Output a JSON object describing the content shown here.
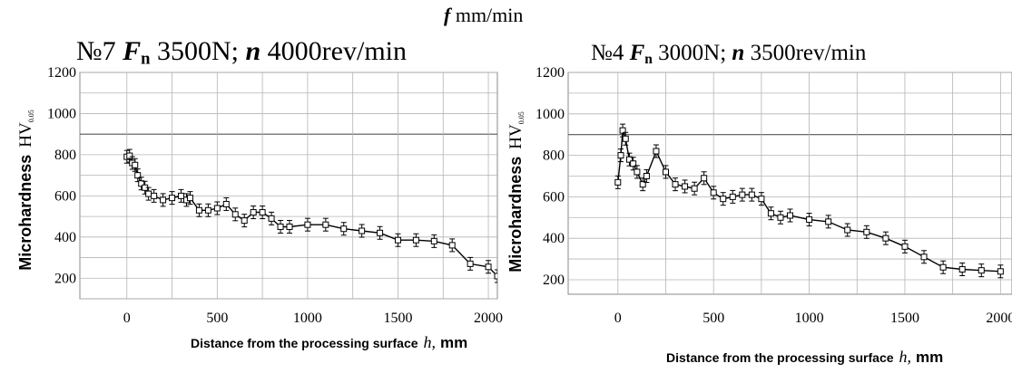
{
  "header": {
    "f_symbol": "f",
    "f_unit": "mm/min"
  },
  "chart_data": [
    {
      "type": "line",
      "title_parts": {
        "number": "№7",
        "force_symbol": "F",
        "force_sub": "n",
        "force_value": "3500N;",
        "speed_symbol": "n",
        "speed_value": "4000rev/min"
      },
      "ylabel_main": "Microhardness",
      "ylabel_hv": "HV",
      "ylabel_hv_sub": "0.05",
      "xlabel_main": "Distance from the processing surface",
      "xlabel_var": "h,",
      "xlabel_unit": "mm",
      "x_tick_labels": [
        "0",
        "500",
        "1000",
        "1500",
        "2000"
      ],
      "y_tick_labels": [
        "200",
        "400",
        "600",
        "800",
        "1000",
        "1200"
      ],
      "xlim": [
        -260,
        2050
      ],
      "ylim": [
        100,
        1200
      ],
      "grid": true,
      "x": [
        0,
        15,
        30,
        45,
        60,
        80,
        100,
        120,
        150,
        200,
        250,
        300,
        330,
        350,
        400,
        450,
        500,
        550,
        600,
        650,
        700,
        750,
        800,
        850,
        900,
        1000,
        1100,
        1200,
        1300,
        1400,
        1500,
        1600,
        1700,
        1800,
        1900,
        2000,
        2050
      ],
      "y": [
        790,
        795,
        760,
        750,
        700,
        660,
        640,
        610,
        600,
        580,
        590,
        600,
        580,
        590,
        530,
        530,
        540,
        560,
        510,
        480,
        520,
        520,
        490,
        450,
        450,
        460,
        460,
        440,
        430,
        420,
        385,
        385,
        380,
        360,
        270,
        255,
        210
      ]
    },
    {
      "type": "line",
      "title_parts": {
        "number": "№4",
        "force_symbol": "F",
        "force_sub": "n",
        "force_value": "3000N;",
        "speed_symbol": "n",
        "speed_value": "3500rev/min"
      },
      "ylabel_main": "Microhardness",
      "ylabel_hv": "HV",
      "ylabel_hv_sub": "0.05",
      "xlabel_main": "Distance from the processing surface",
      "xlabel_var": "h,",
      "xlabel_unit": "mm",
      "x_tick_labels": [
        "0",
        "500",
        "1000",
        "1500",
        "2000"
      ],
      "y_tick_labels": [
        "200",
        "400",
        "600",
        "800",
        "1000",
        "1200"
      ],
      "xlim": [
        -260,
        2060
      ],
      "ylim": [
        130,
        1200
      ],
      "grid": true,
      "x": [
        0,
        15,
        25,
        40,
        60,
        80,
        100,
        130,
        150,
        200,
        250,
        300,
        350,
        400,
        450,
        500,
        550,
        600,
        650,
        700,
        750,
        800,
        850,
        900,
        1000,
        1100,
        1200,
        1300,
        1400,
        1500,
        1600,
        1700,
        1800,
        1900,
        2000
      ],
      "y": [
        670,
        800,
        920,
        880,
        780,
        760,
        720,
        660,
        700,
        820,
        720,
        660,
        650,
        640,
        690,
        620,
        590,
        600,
        610,
        610,
        590,
        520,
        500,
        510,
        490,
        480,
        440,
        430,
        400,
        360,
        310,
        260,
        250,
        245,
        240
      ]
    }
  ]
}
